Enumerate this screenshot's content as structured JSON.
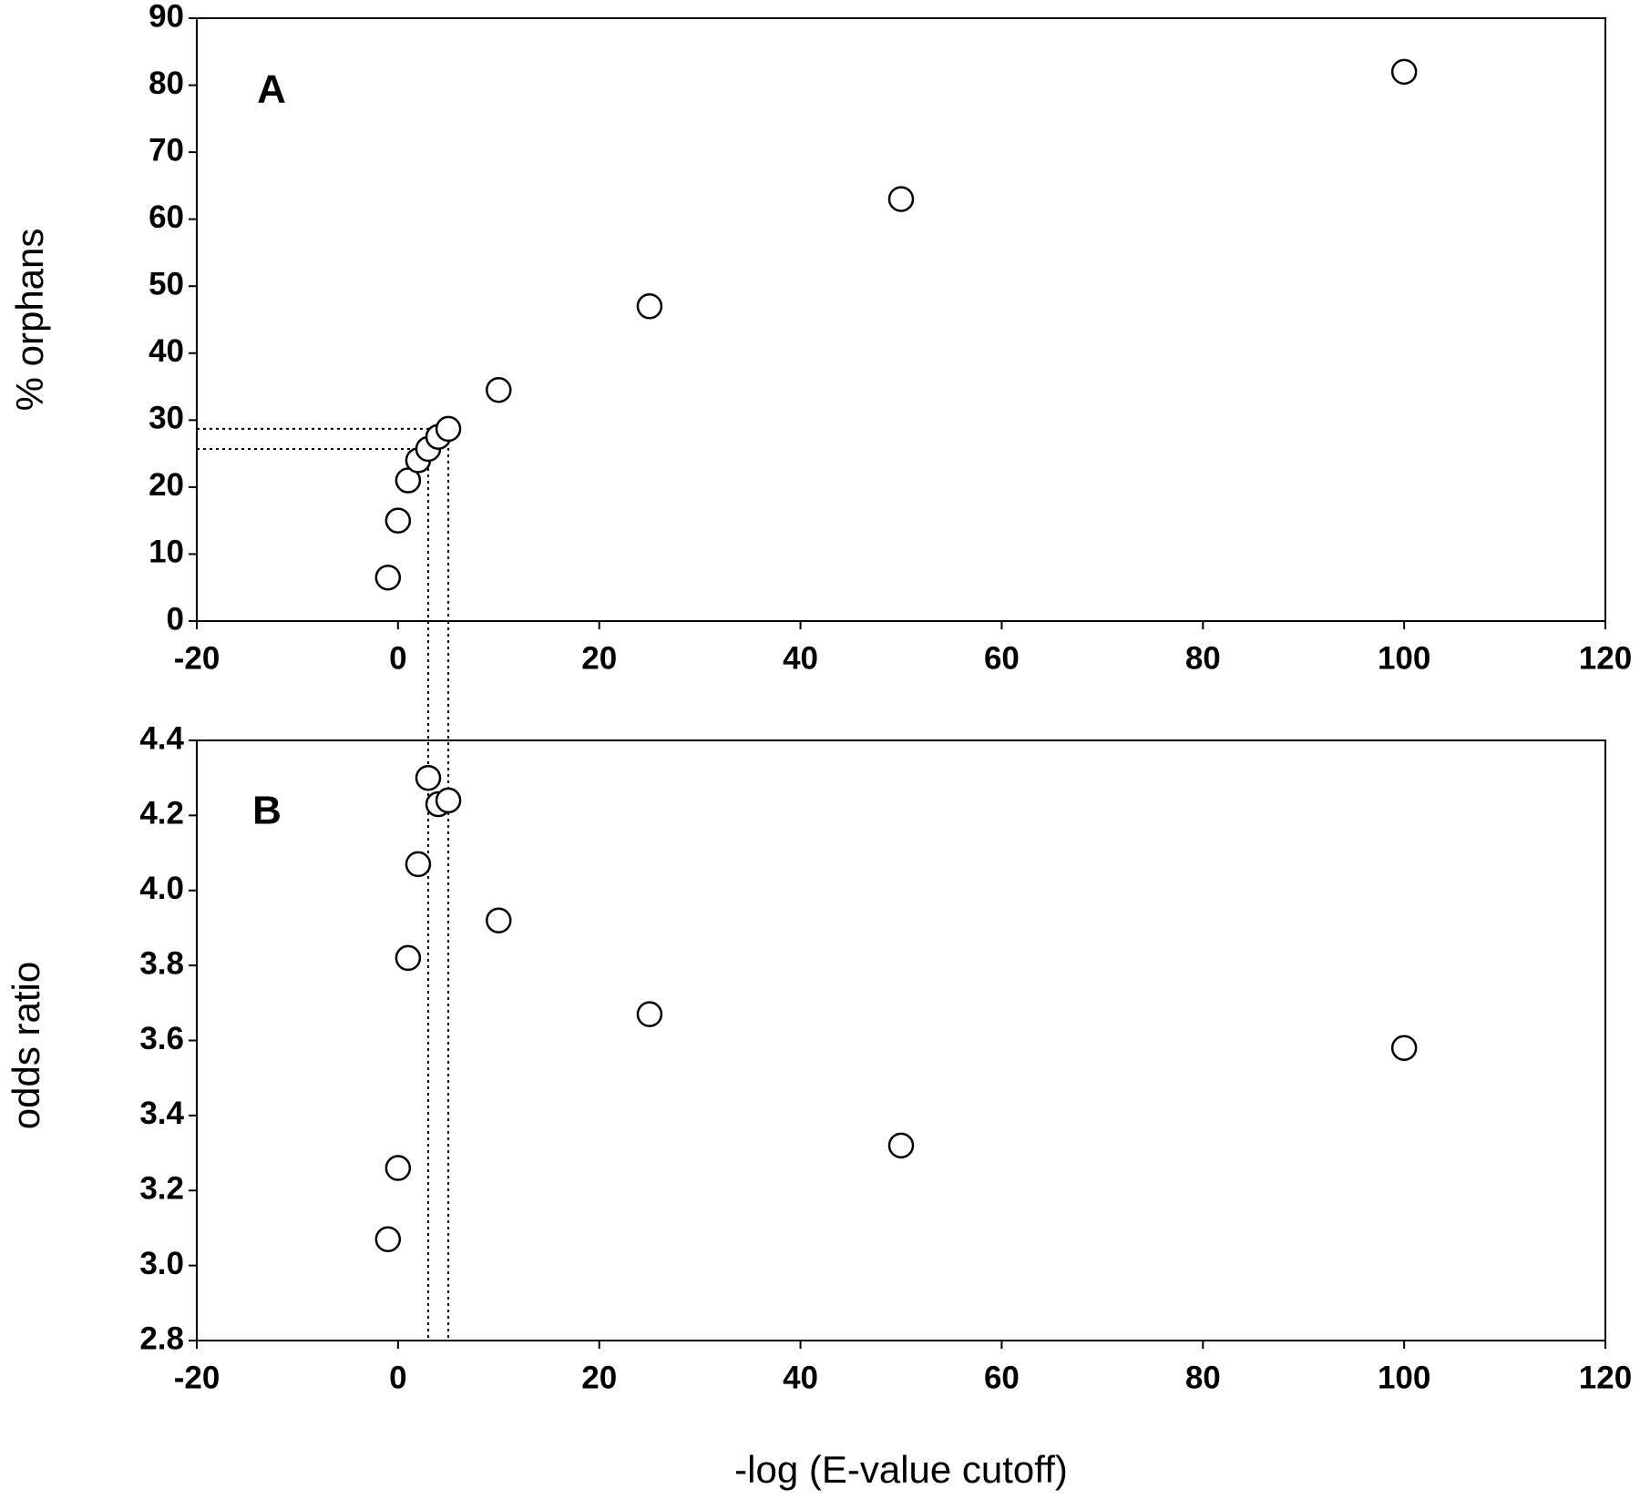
{
  "chart_data": [
    {
      "type": "scatter",
      "annotation": "A",
      "ylabel": "% orphans",
      "x": [
        -1,
        0,
        1,
        2,
        3,
        4,
        5,
        10,
        25,
        50,
        100
      ],
      "y": [
        6.5,
        15,
        21,
        24,
        25.7,
        27.5,
        28.7,
        34.5,
        47,
        63,
        82
      ],
      "xlim": [
        -20,
        120
      ],
      "xticks": [
        -20,
        0,
        20,
        40,
        60,
        80,
        100,
        120
      ],
      "ylim": [
        0,
        90
      ],
      "yticks": [
        0,
        10,
        20,
        30,
        40,
        50,
        60,
        70,
        80,
        90
      ],
      "guides": [
        {
          "x": 3,
          "y": 25.7
        },
        {
          "x": 5,
          "y": 28.7
        }
      ],
      "color": "#000000"
    },
    {
      "type": "scatter",
      "annotation": "B",
      "ylabel": "odds ratio",
      "xlabel": "-log (E-value cutoff)",
      "x": [
        -1,
        0,
        1,
        2,
        3,
        4,
        5,
        10,
        25,
        50,
        100
      ],
      "y": [
        3.07,
        3.26,
        3.82,
        4.07,
        4.3,
        4.23,
        4.24,
        3.92,
        3.67,
        3.32,
        3.58
      ],
      "xlim": [
        -20,
        120
      ],
      "xticks": [
        -20,
        0,
        20,
        40,
        60,
        80,
        100,
        120
      ],
      "ylim": [
        2.8,
        4.4
      ],
      "yticks": [
        2.8,
        {
          "value": 3,
          "label": "3.0"
        },
        3.2,
        3.4,
        3.6,
        3.8,
        {
          "value": 4,
          "label": "4.0"
        },
        4.2,
        4.4
      ],
      "color": "#000000"
    }
  ]
}
